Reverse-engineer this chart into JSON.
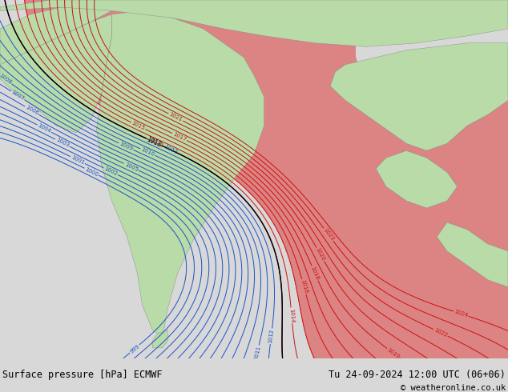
{
  "title_left": "Surface pressure [hPa] ECMWF",
  "title_right": "Tu 24-09-2024 12:00 UTC (06+06)",
  "copyright": "© weatheronline.co.uk",
  "land_green": "#b8dba8",
  "land_red_high": "#e03030",
  "ocean_color": "#c0c8cc",
  "contour_blue": "#1a52c8",
  "contour_red": "#cc1010",
  "contour_black": "#000000",
  "footer_bg": "#d8d8d8",
  "footer_line_color": "#888888",
  "footer_text_color": "#000000",
  "font_size_footer": 8.5,
  "map_bg": "#c8ccd0"
}
